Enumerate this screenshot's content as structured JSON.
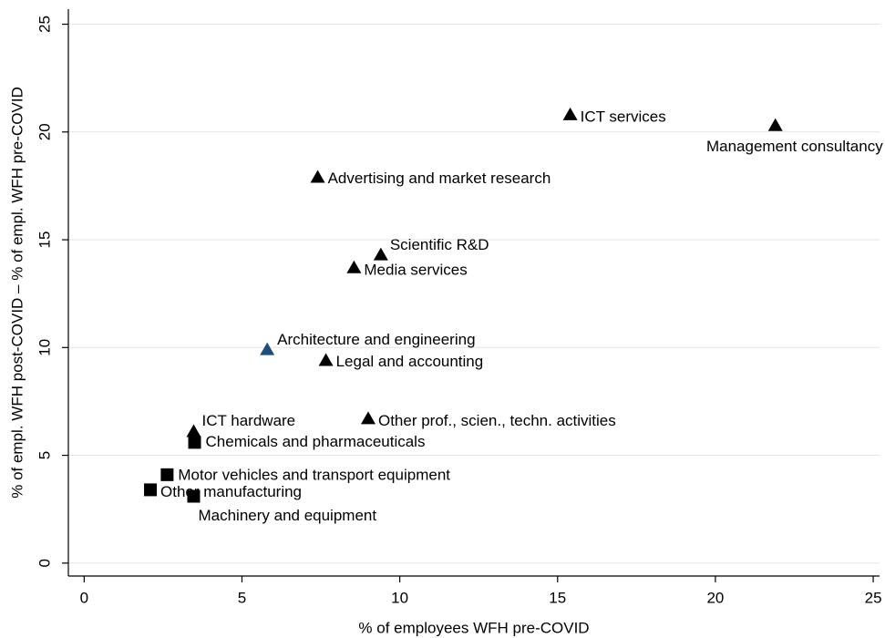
{
  "chart_data": {
    "type": "scatter",
    "xlabel": "% of employees WFH pre-COVID",
    "ylabel": "% of empl. WFH post-COVID – % of empl. WFH pre-COVID",
    "labels": [
      "ICT services",
      "Management consultancy",
      "Advertising and market research",
      "Scientific R&D",
      "Media services",
      "Architecture and engineering",
      "Legal and accounting",
      "Other prof., scien., techn. activities",
      "ICT hardware",
      "Chemicals and pharmaceuticals",
      "Motor vehicles and transport equipment",
      "Other manufacturing",
      "Machinery and equipment"
    ],
    "x": [
      15.4,
      21.9,
      7.4,
      9.4,
      8.55,
      5.8,
      7.66,
      9.0,
      3.47,
      3.5,
      2.63,
      2.1,
      3.47
    ],
    "values": [
      20.8,
      20.3,
      17.9,
      14.3,
      13.7,
      9.9,
      9.4,
      6.7,
      6.1,
      5.6,
      4.1,
      3.4,
      3.1
    ],
    "markers": [
      "triangle",
      "triangle",
      "triangle",
      "triangle",
      "triangle",
      "triangle",
      "triangle",
      "triangle",
      "triangle",
      "square",
      "square",
      "square",
      "square"
    ],
    "colors": [
      "#000000",
      "#000000",
      "#000000",
      "#000000",
      "#000000",
      "#1f4e79",
      "#000000",
      "#000000",
      "#000000",
      "#000000",
      "#000000",
      "#000000",
      "#000000"
    ],
    "xlim": [
      -0.5,
      25.2
    ],
    "ylim": [
      -0.6,
      25.7
    ],
    "xticks": [
      0,
      5,
      10,
      15,
      20,
      25
    ],
    "yticks": [
      0,
      5,
      10,
      15,
      20,
      25
    ],
    "grid": true
  }
}
